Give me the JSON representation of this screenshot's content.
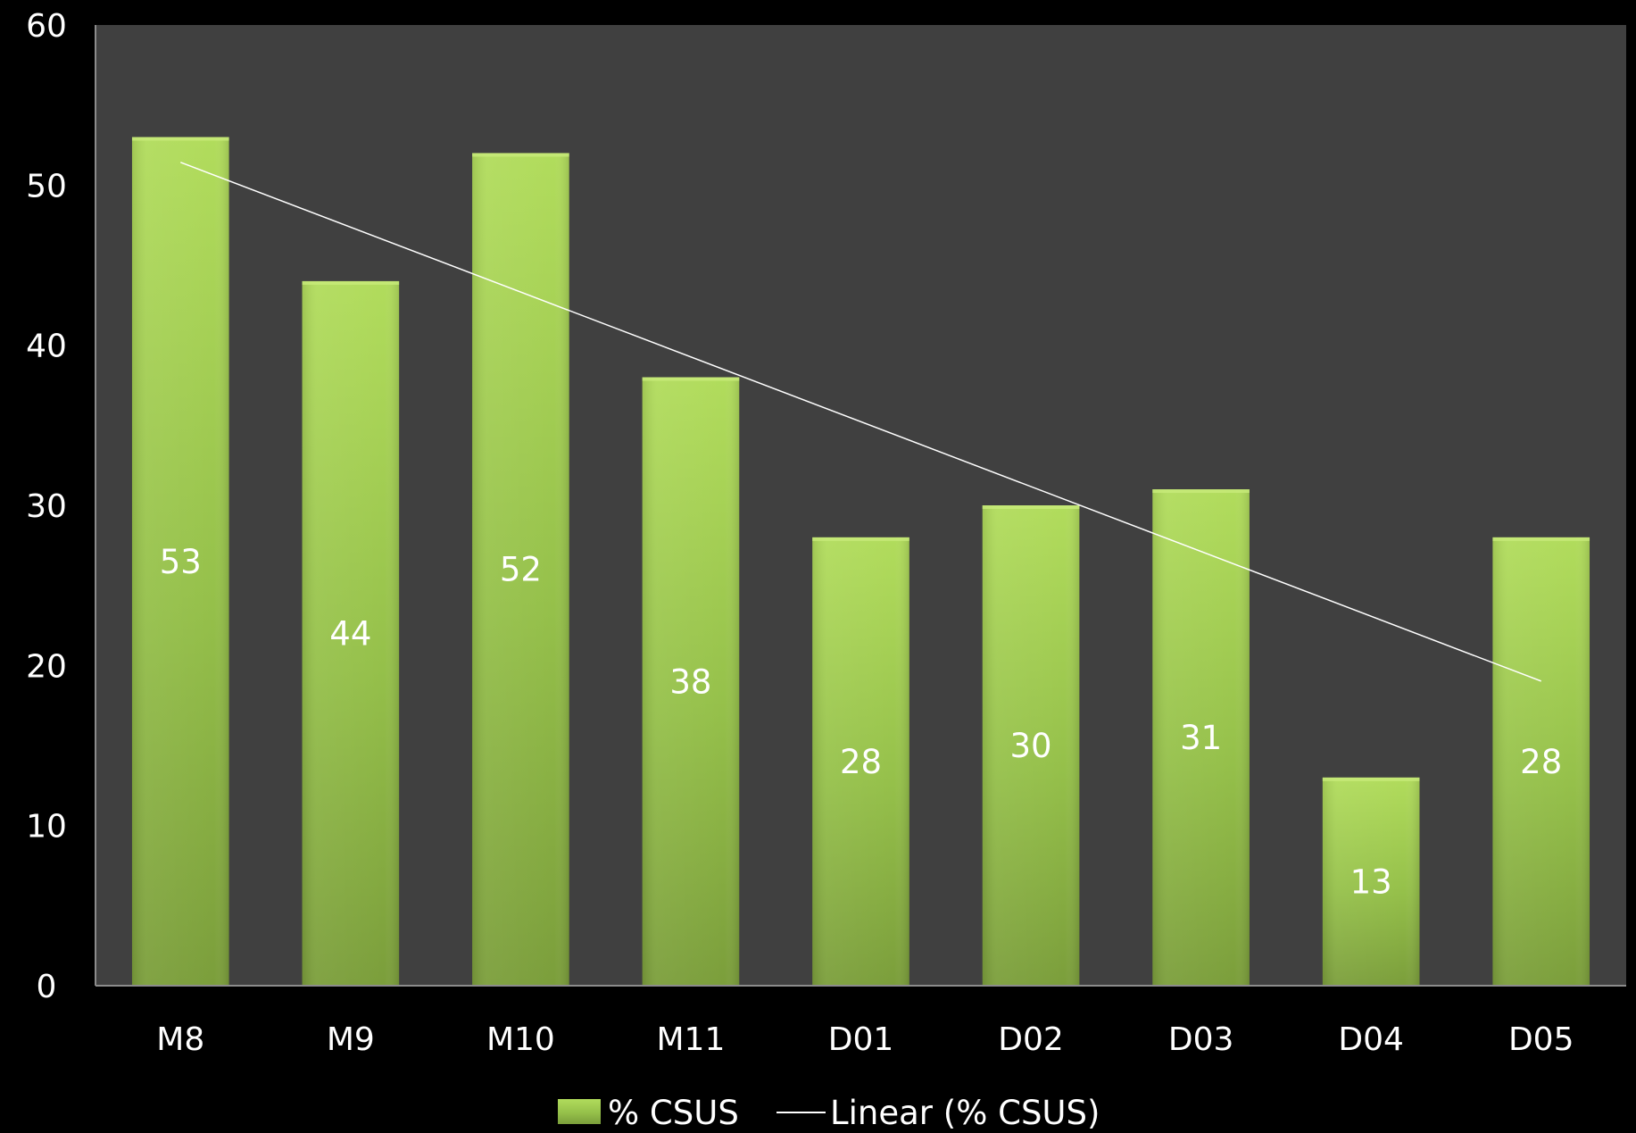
{
  "chart_data": {
    "type": "bar",
    "title": "",
    "xlabel": "",
    "ylabel": "",
    "categories": [
      "M8",
      "M9",
      "M10",
      "M11",
      "D01",
      "D02",
      "D03",
      "D04",
      "D05"
    ],
    "series": [
      {
        "name": "% CSUS",
        "values": [
          53,
          44,
          52,
          38,
          28,
          30,
          31,
          13,
          28
        ],
        "color": "#9bc947"
      }
    ],
    "data_labels": [
      "53",
      "44",
      "52",
      "38",
      "28",
      "30",
      "31",
      "13",
      "28"
    ],
    "trendline": {
      "name": "Linear (% CSUS)",
      "type": "linear",
      "color": "#ffffff"
    },
    "ylim": [
      0,
      60
    ],
    "yticks": [
      0,
      10,
      20,
      30,
      40,
      50,
      60
    ],
    "grid": false,
    "legend": "bottom",
    "colors": {
      "page_background": "#000000",
      "plot_background": "#404040",
      "axis": "#8c8c8c",
      "bar_top": "#b1dc5c",
      "bar_bottom": "#7b9e3b",
      "text": "#ffffff"
    }
  }
}
